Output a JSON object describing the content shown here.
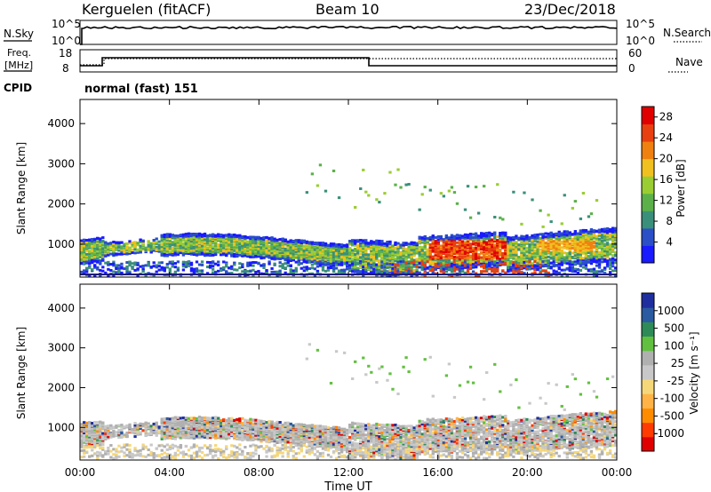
{
  "header": {
    "station": "Kerguelen (fitACF)",
    "beam": "Beam 10",
    "date": "23/Dec/2018"
  },
  "nsky_panel": {
    "left_label": "N.Sky",
    "left_ticks": [
      "10^5",
      "10^0"
    ],
    "right_label": "N.Search",
    "right_ticks": [
      "10^5",
      "10^0"
    ]
  },
  "freq_panel": {
    "left_label_line1": "Freq.",
    "left_label_line2": "[MHz]",
    "left_ticks": [
      "18",
      "8"
    ],
    "right_label": "Nave",
    "right_ticks": [
      "60",
      "0"
    ],
    "cpid_label": "CPID",
    "cpid_text": "normal (fast) 151"
  },
  "colors": {
    "power": [
      "#1a1aff",
      "#2a4fc7",
      "#3a8f7a",
      "#5bb04a",
      "#9acd32",
      "#f0c020",
      "#f08010",
      "#e84010",
      "#e00000"
    ],
    "velocity": [
      "#e00000",
      "#ff3b00",
      "#ff8c00",
      "#ffb347",
      "#f5d77a",
      "#c8c8c8",
      "#b0b0b0",
      "#62c040",
      "#2e8b57",
      "#2a5aa0",
      "#1f2e9e"
    ]
  },
  "chart_data": [
    {
      "type": "heatmap",
      "panel": "power",
      "ylabel": "Slant Range [km]",
      "ylim": [
        180,
        4600
      ],
      "y_ticks": [
        "1000",
        "2000",
        "3000",
        "4000"
      ],
      "x_ticks": [
        "00:00",
        "04:00",
        "08:00",
        "12:00",
        "16:00",
        "20:00",
        "00:00"
      ],
      "colorbar": {
        "label": "Power [dB]",
        "ticks": [
          "4",
          "8",
          "12",
          "16",
          "20",
          "24",
          "28"
        ],
        "range": [
          0,
          30
        ]
      }
    },
    {
      "type": "heatmap",
      "panel": "velocity",
      "ylabel": "Slant Range [km]",
      "ylim": [
        180,
        4600
      ],
      "y_ticks": [
        "1000",
        "2000",
        "3000",
        "4000"
      ],
      "x_ticks": [
        "00:00",
        "04:00",
        "08:00",
        "12:00",
        "16:00",
        "20:00",
        "00:00"
      ],
      "xlabel": "Time UT",
      "colorbar": {
        "label": "Velocity [m s⁻¹]",
        "ticks": [
          "1000",
          "500",
          "100",
          "25",
          "-25",
          "-100",
          "-500",
          "-1000"
        ]
      }
    }
  ]
}
